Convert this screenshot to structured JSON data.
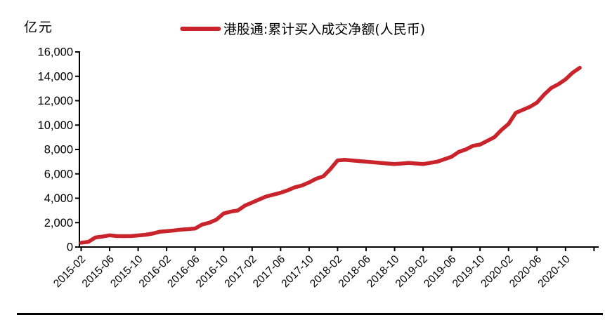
{
  "chart_data": {
    "type": "line",
    "unit_label": "亿元",
    "legend_label": "港股通:累计买入成交净额(人民币)",
    "legend_position": "top-center",
    "line_color": "#c9242b",
    "axis_color": "#000000",
    "grid": false,
    "ylim": [
      0,
      16000
    ],
    "y_tick_step": 2000,
    "y_ticks": [
      0,
      2000,
      4000,
      6000,
      8000,
      10000,
      12000,
      14000,
      16000
    ],
    "x_tick_labels": [
      "2015-02",
      "2015-06",
      "2015-10",
      "2016-02",
      "2016-06",
      "2016-10",
      "2017-02",
      "2017-06",
      "2017-10",
      "2018-02",
      "2018-06",
      "2018-10",
      "2019-02",
      "2019-06",
      "2019-10",
      "2020-02",
      "2020-06",
      "2020-10"
    ],
    "x": [
      "2015-02",
      "2015-03",
      "2015-04",
      "2015-05",
      "2015-06",
      "2015-07",
      "2015-08",
      "2015-09",
      "2015-10",
      "2015-11",
      "2015-12",
      "2016-01",
      "2016-02",
      "2016-03",
      "2016-04",
      "2016-05",
      "2016-06",
      "2016-07",
      "2016-08",
      "2016-09",
      "2016-10",
      "2016-11",
      "2016-12",
      "2017-01",
      "2017-02",
      "2017-03",
      "2017-04",
      "2017-05",
      "2017-06",
      "2017-07",
      "2017-08",
      "2017-09",
      "2017-10",
      "2017-11",
      "2017-12",
      "2018-01",
      "2018-02",
      "2018-03",
      "2018-04",
      "2018-05",
      "2018-06",
      "2018-07",
      "2018-08",
      "2018-09",
      "2018-10",
      "2018-11",
      "2018-12",
      "2019-01",
      "2019-02",
      "2019-03",
      "2019-04",
      "2019-05",
      "2019-06",
      "2019-07",
      "2019-08",
      "2019-09",
      "2019-10",
      "2019-11",
      "2019-12",
      "2020-01",
      "2020-02",
      "2020-03",
      "2020-04",
      "2020-05",
      "2020-06",
      "2020-07",
      "2020-08",
      "2020-09",
      "2020-10",
      "2020-11",
      "2020-12"
    ],
    "values": [
      350,
      420,
      780,
      860,
      960,
      900,
      890,
      900,
      950,
      1000,
      1100,
      1250,
      1300,
      1350,
      1430,
      1470,
      1520,
      1850,
      2000,
      2250,
      2750,
      2900,
      3000,
      3400,
      3650,
      3900,
      4150,
      4300,
      4450,
      4650,
      4900,
      5050,
      5300,
      5600,
      5800,
      6400,
      7100,
      7150,
      7100,
      7050,
      7000,
      6950,
      6900,
      6850,
      6800,
      6850,
      6900,
      6850,
      6800,
      6900,
      7000,
      7200,
      7400,
      7800,
      8000,
      8300,
      8400,
      8700,
      9000,
      9600,
      10100,
      11000,
      11250,
      11500,
      11850,
      12500,
      13050,
      13350,
      13750,
      14300,
      14700
    ]
  }
}
